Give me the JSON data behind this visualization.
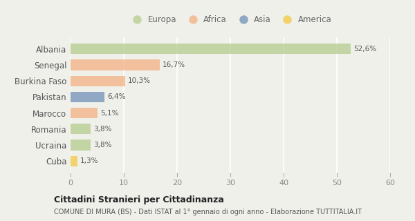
{
  "countries": [
    "Albania",
    "Senegal",
    "Burkina Faso",
    "Pakistan",
    "Marocco",
    "Romania",
    "Ucraina",
    "Cuba"
  ],
  "values": [
    52.6,
    16.7,
    10.3,
    6.4,
    5.1,
    3.8,
    3.8,
    1.3
  ],
  "labels": [
    "52,6%",
    "16,7%",
    "10,3%",
    "6,4%",
    "5,1%",
    "3,8%",
    "3,8%",
    "1,3%"
  ],
  "colors": [
    "#b5cc8e",
    "#f4b183",
    "#f4b183",
    "#7090b8",
    "#f4b183",
    "#b5cc8e",
    "#b5cc8e",
    "#f4c842"
  ],
  "legend": [
    {
      "label": "Europa",
      "color": "#b5cc8e"
    },
    {
      "label": "Africa",
      "color": "#f4b183"
    },
    {
      "label": "Asia",
      "color": "#7090b8"
    },
    {
      "label": "America",
      "color": "#f4c842"
    }
  ],
  "xlim": [
    0,
    60
  ],
  "xticks": [
    0,
    10,
    20,
    30,
    40,
    50,
    60
  ],
  "title": "Cittadini Stranieri per Cittadinanza",
  "subtitle": "COMUNE DI MURA (BS) - Dati ISTAT al 1° gennaio di ogni anno - Elaborazione TUTTITALIA.IT",
  "background_color": "#f0f0eb",
  "bar_alpha": 0.75,
  "bar_height": 0.65
}
